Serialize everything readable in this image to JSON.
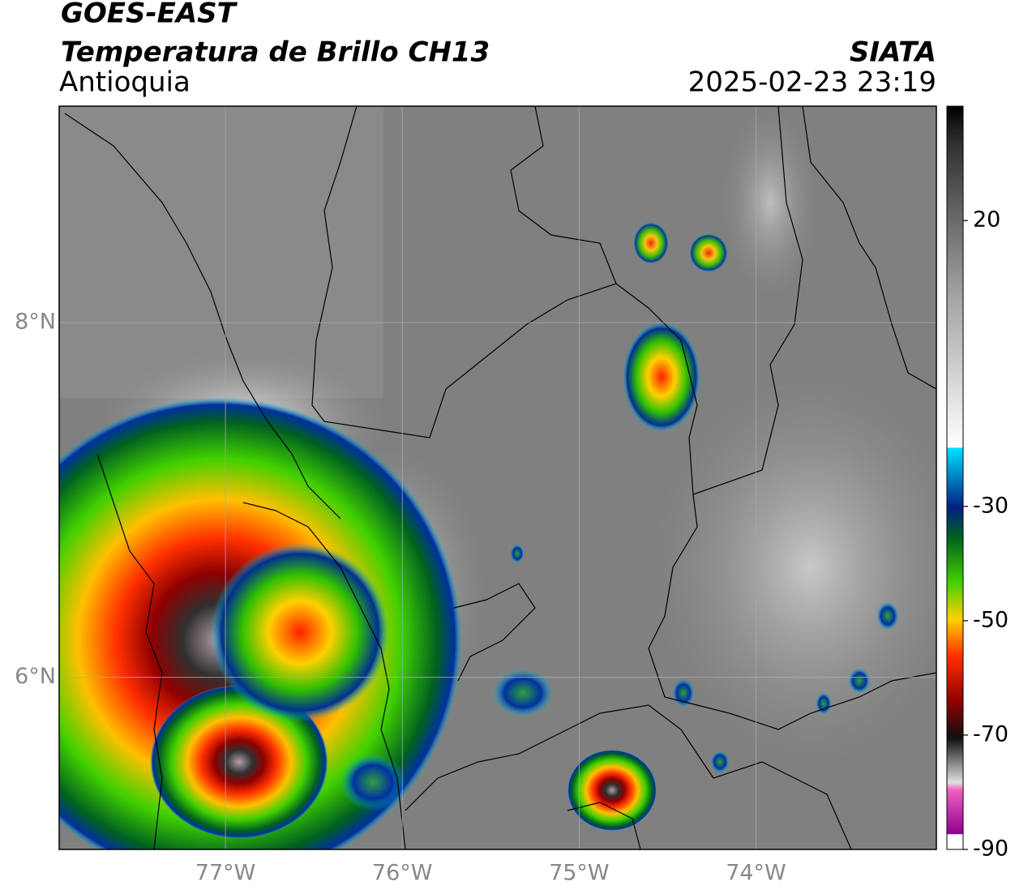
{
  "header": {
    "title": "GOES-EAST",
    "subtitle": "Temperatura de Brillo CH13",
    "region": "Antioquia",
    "source": "SIATA",
    "datetime": "2025-02-23 23:19"
  },
  "map": {
    "xlim": [
      -77.94,
      -72.98
    ],
    "ylim": [
      5.03,
      9.22
    ],
    "xticks": [
      {
        "value": -77,
        "label": "77°W"
      },
      {
        "value": -76,
        "label": "76°W"
      },
      {
        "value": -75,
        "label": "75°W"
      },
      {
        "value": -74,
        "label": "74°W"
      }
    ],
    "yticks": [
      {
        "value": 8,
        "label": "8°N"
      },
      {
        "value": 6,
        "label": "6°N"
      }
    ]
  },
  "colorbar": {
    "lim": [
      -90,
      40
    ],
    "ticks": [
      20,
      -30,
      -50,
      -70,
      -90
    ]
  }
}
